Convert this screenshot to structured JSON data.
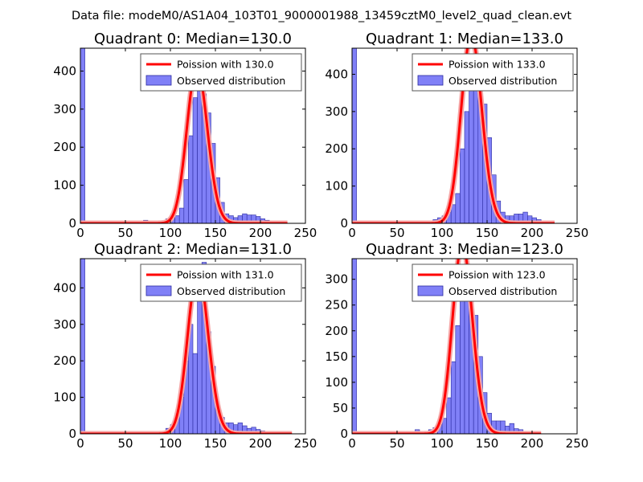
{
  "figure": {
    "suptitle": "Data file: modeM0/AS1A04_103T01_9000001988_13459cztM0_level2_quad_clean.evt"
  },
  "colors": {
    "bar_fill": "#8080f7",
    "bar_edge": "#2a2aa0",
    "curve": "#ff0000",
    "curve_glow": "#f6a6a6",
    "axes": "#000000",
    "legend_edge": "#555555"
  },
  "chart_data": [
    {
      "type": "bar",
      "title": "Quadrant 0: Median=130.0",
      "xlim": [
        0,
        250
      ],
      "ylim": [
        0,
        460
      ],
      "xticks": [
        0,
        50,
        100,
        150,
        200,
        250
      ],
      "yticks": [
        0,
        100,
        200,
        300,
        400
      ],
      "median": 130.0,
      "legend": {
        "curve_label": "Poission with 130.0",
        "hist_label": "Observed distribution",
        "position": "upper right"
      },
      "bin_width": 5,
      "bins": [
        [
          0,
          470
        ],
        [
          70,
          8
        ],
        [
          90,
          5
        ],
        [
          95,
          12
        ],
        [
          100,
          15
        ],
        [
          105,
          20
        ],
        [
          110,
          40
        ],
        [
          115,
          115
        ],
        [
          120,
          230
        ],
        [
          125,
          330
        ],
        [
          130,
          360
        ],
        [
          135,
          340
        ],
        [
          140,
          290
        ],
        [
          145,
          210
        ],
        [
          150,
          120
        ],
        [
          155,
          55
        ],
        [
          160,
          25
        ],
        [
          165,
          20
        ],
        [
          170,
          15
        ],
        [
          175,
          20
        ],
        [
          180,
          25
        ],
        [
          185,
          22
        ],
        [
          190,
          22
        ],
        [
          195,
          18
        ],
        [
          200,
          12
        ],
        [
          205,
          8
        ],
        [
          210,
          5
        ],
        [
          215,
          3
        ],
        [
          220,
          2
        ]
      ]
    },
    {
      "type": "bar",
      "title": "Quadrant 1: Median=133.0",
      "xlim": [
        0,
        250
      ],
      "ylim": [
        0,
        470
      ],
      "xticks": [
        0,
        50,
        100,
        150,
        200,
        250
      ],
      "yticks": [
        0,
        100,
        200,
        300,
        400
      ],
      "median": 133.0,
      "legend": {
        "curve_label": "Poission with 133.0",
        "hist_label": "Observed distribution",
        "position": "upper right"
      },
      "bin_width": 5,
      "bins": [
        [
          0,
          470
        ],
        [
          80,
          3
        ],
        [
          90,
          10
        ],
        [
          95,
          15
        ],
        [
          100,
          20
        ],
        [
          105,
          30
        ],
        [
          110,
          50
        ],
        [
          115,
          80
        ],
        [
          120,
          200
        ],
        [
          125,
          300
        ],
        [
          130,
          390
        ],
        [
          135,
          460
        ],
        [
          140,
          410
        ],
        [
          145,
          320
        ],
        [
          150,
          230
        ],
        [
          155,
          130
        ],
        [
          160,
          60
        ],
        [
          165,
          30
        ],
        [
          170,
          20
        ],
        [
          175,
          20
        ],
        [
          180,
          25
        ],
        [
          185,
          25
        ],
        [
          190,
          30
        ],
        [
          195,
          20
        ],
        [
          200,
          15
        ],
        [
          205,
          10
        ],
        [
          210,
          5
        ],
        [
          215,
          3
        ]
      ]
    },
    {
      "type": "bar",
      "title": "Quadrant 2: Median=131.0",
      "xlim": [
        0,
        250
      ],
      "ylim": [
        0,
        480
      ],
      "xticks": [
        0,
        50,
        100,
        150,
        200,
        250
      ],
      "yticks": [
        0,
        100,
        200,
        300,
        400
      ],
      "median": 131.0,
      "legend": {
        "curve_label": "Poission with 131.0",
        "hist_label": "Observed distribution",
        "position": "upper right"
      },
      "bin_width": 5,
      "bins": [
        [
          0,
          480
        ],
        [
          75,
          5
        ],
        [
          95,
          15
        ],
        [
          100,
          25
        ],
        [
          105,
          55
        ],
        [
          110,
          100
        ],
        [
          115,
          200
        ],
        [
          120,
          300
        ],
        [
          125,
          220
        ],
        [
          130,
          390
        ],
        [
          135,
          470
        ],
        [
          140,
          280
        ],
        [
          145,
          185
        ],
        [
          150,
          70
        ],
        [
          155,
          45
        ],
        [
          160,
          30
        ],
        [
          165,
          30
        ],
        [
          170,
          25
        ],
        [
          175,
          30
        ],
        [
          180,
          22
        ],
        [
          185,
          15
        ],
        [
          190,
          18
        ],
        [
          195,
          12
        ],
        [
          200,
          8
        ],
        [
          205,
          5
        ],
        [
          210,
          3
        ],
        [
          215,
          2
        ],
        [
          220,
          2
        ],
        [
          225,
          2
        ]
      ]
    },
    {
      "type": "bar",
      "title": "Quadrant 3: Median=123.0",
      "xlim": [
        0,
        250
      ],
      "ylim": [
        0,
        340
      ],
      "xticks": [
        0,
        50,
        100,
        150,
        200,
        250
      ],
      "yticks": [
        0,
        50,
        100,
        150,
        200,
        250,
        300
      ],
      "median": 123.0,
      "legend": {
        "curve_label": "Poission with 123.0",
        "hist_label": "Observed distribution",
        "position": "upper right"
      },
      "bin_width": 5,
      "bins": [
        [
          0,
          350
        ],
        [
          25,
          5
        ],
        [
          30,
          3
        ],
        [
          40,
          5
        ],
        [
          50,
          2
        ],
        [
          60,
          5
        ],
        [
          70,
          8
        ],
        [
          75,
          3
        ],
        [
          80,
          5
        ],
        [
          85,
          8
        ],
        [
          90,
          12
        ],
        [
          95,
          18
        ],
        [
          100,
          30
        ],
        [
          105,
          70
        ],
        [
          110,
          140
        ],
        [
          115,
          210
        ],
        [
          120,
          300
        ],
        [
          125,
          320
        ],
        [
          130,
          260
        ],
        [
          135,
          230
        ],
        [
          140,
          150
        ],
        [
          145,
          80
        ],
        [
          150,
          40
        ],
        [
          155,
          25
        ],
        [
          160,
          25
        ],
        [
          165,
          25
        ],
        [
          170,
          15
        ],
        [
          175,
          20
        ],
        [
          180,
          10
        ],
        [
          185,
          8
        ],
        [
          190,
          5
        ],
        [
          195,
          3
        ],
        [
          200,
          2
        ]
      ]
    }
  ]
}
